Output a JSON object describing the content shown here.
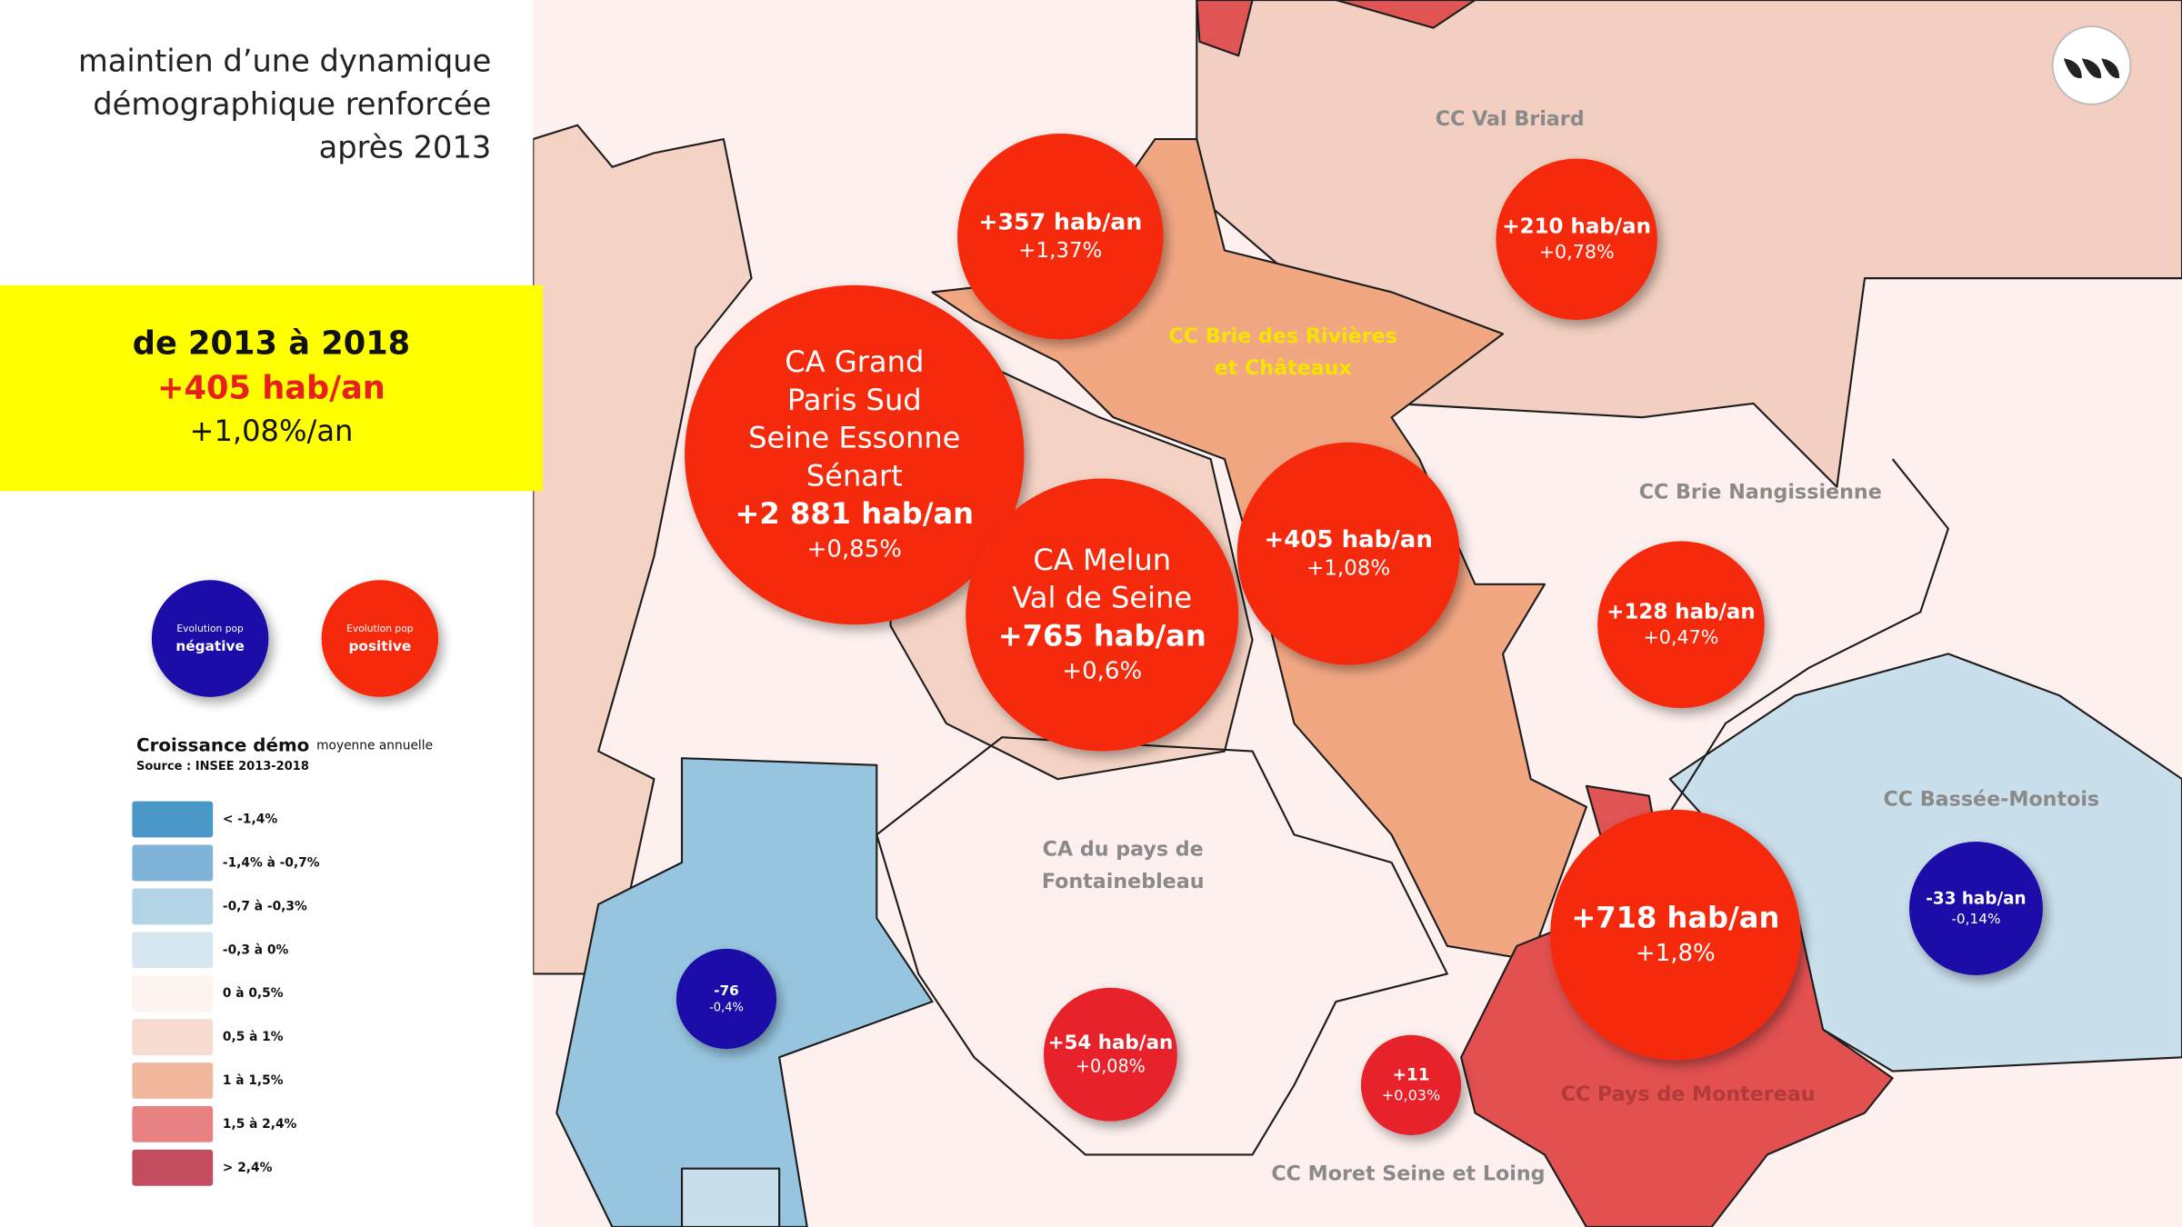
{
  "header": {
    "title_lines": [
      "maintien d’une dynamique",
      "démographique renforcée",
      "après 2013"
    ]
  },
  "highlight": {
    "period": "de 2013 à 2018",
    "growth": "+405 hab/an",
    "rate": "+1,08%/an"
  },
  "bubble_legend": [
    {
      "line1": "Evolution pop",
      "line2": "négative"
    },
    {
      "line1": "Evolution pop",
      "line2": "positive"
    }
  ],
  "legend": {
    "title": "Croissance démo",
    "title_suffix": "moyenne annuelle",
    "source": "Source : INSEE 2013-2018",
    "classes": [
      "< -1,4%",
      "-1,4% à -0,7%",
      "-0,7 à -0,3%",
      "-0,3 à 0%",
      "0 à 0,5%",
      "0,5 à 1%",
      "1 à 1,5%",
      "1,5 à 2,4%",
      "> 2,4%"
    ]
  },
  "territories": [
    {
      "lines": [
        "CC Val Briard"
      ]
    },
    {
      "lines": [
        "CC Brie des Rivières",
        "et Châteaux"
      ]
    },
    {
      "lines": [
        "CC Brie Nangissienne"
      ]
    },
    {
      "lines": [
        "CC Bassée-Montois"
      ]
    },
    {
      "lines": [
        "CA du pays de",
        "Fontainebleau"
      ]
    },
    {
      "lines": [
        "CC Moret Seine et Loing"
      ]
    },
    {
      "lines": [
        "CC Pays de Montereau"
      ]
    }
  ],
  "bubbles": [
    {
      "value": "+357 hab/an",
      "rate": "+1,37%"
    },
    {
      "value": "+210 hab/an",
      "rate": "+0,78%"
    },
    {
      "name_lines": [
        "CA Grand",
        "Paris Sud",
        "Seine Essonne",
        "Sénart"
      ],
      "value": "+2 881 hab/an",
      "rate": "+0,85%"
    },
    {
      "name_lines": [
        "CA Melun",
        "Val de Seine"
      ],
      "value": "+765 hab/an",
      "rate": "+0,6%"
    },
    {
      "value": "+405 hab/an",
      "rate": "+1,08%"
    },
    {
      "value": "+128 hab/an",
      "rate": "+0,47%"
    },
    {
      "value": "+718 hab/an",
      "rate": "+1,8%"
    },
    {
      "value": "-33 hab/an",
      "rate": "-0,14%"
    },
    {
      "value": "-76",
      "rate": "-0,4%"
    },
    {
      "value": "+54 hab/an",
      "rate": "+0,08%"
    },
    {
      "value": "+11",
      "rate": "+0,03%"
    }
  ]
}
